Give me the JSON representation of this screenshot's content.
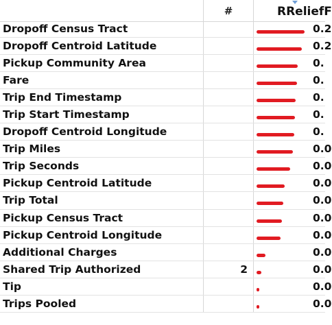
{
  "header": {
    "col_name": "",
    "col_count": "#",
    "col_score": "RReliefF"
  },
  "colors": {
    "bar": "#e11b22",
    "sort_indicator": "#6f9fd8"
  },
  "rows": [
    {
      "name": "Dropoff Census Tract",
      "count": "",
      "score": "0.2",
      "bar_fraction": 1.0
    },
    {
      "name": "Dropoff Centroid Latitude",
      "count": "",
      "score": "0.2",
      "bar_fraction": 0.94
    },
    {
      "name": "Pickup Community Area",
      "count": "",
      "score": "0.",
      "bar_fraction": 0.86
    },
    {
      "name": "Fare",
      "count": "",
      "score": "0.",
      "bar_fraction": 0.84
    },
    {
      "name": "Trip End Timestamp",
      "count": "",
      "score": "0.",
      "bar_fraction": 0.82
    },
    {
      "name": "Trip Start Timestamp",
      "count": "",
      "score": "0.",
      "bar_fraction": 0.8
    },
    {
      "name": "Dropoff Centroid Longitude",
      "count": "",
      "score": "0.",
      "bar_fraction": 0.78
    },
    {
      "name": "Trip Miles",
      "count": "",
      "score": "0.0",
      "bar_fraction": 0.76
    },
    {
      "name": "Trip Seconds",
      "count": "",
      "score": "0.0",
      "bar_fraction": 0.7
    },
    {
      "name": "Pickup Centroid Latitude",
      "count": "",
      "score": "0.0",
      "bar_fraction": 0.58
    },
    {
      "name": "Trip Total",
      "count": "",
      "score": "0.0",
      "bar_fraction": 0.55
    },
    {
      "name": "Pickup Census Tract",
      "count": "",
      "score": "0.0",
      "bar_fraction": 0.53
    },
    {
      "name": "Pickup Centroid Longitude",
      "count": "",
      "score": "0.0",
      "bar_fraction": 0.5
    },
    {
      "name": "Additional Charges",
      "count": "",
      "score": "0.0",
      "bar_fraction": 0.18
    },
    {
      "name": "Shared Trip Authorized",
      "count": "2",
      "score": "0.0",
      "bar_fraction": 0.1
    },
    {
      "name": "Tip",
      "count": "",
      "score": "0.0",
      "bar_fraction": 0.06
    },
    {
      "name": "Trips Pooled",
      "count": "",
      "score": "0.0",
      "bar_fraction": 0.05
    }
  ]
}
